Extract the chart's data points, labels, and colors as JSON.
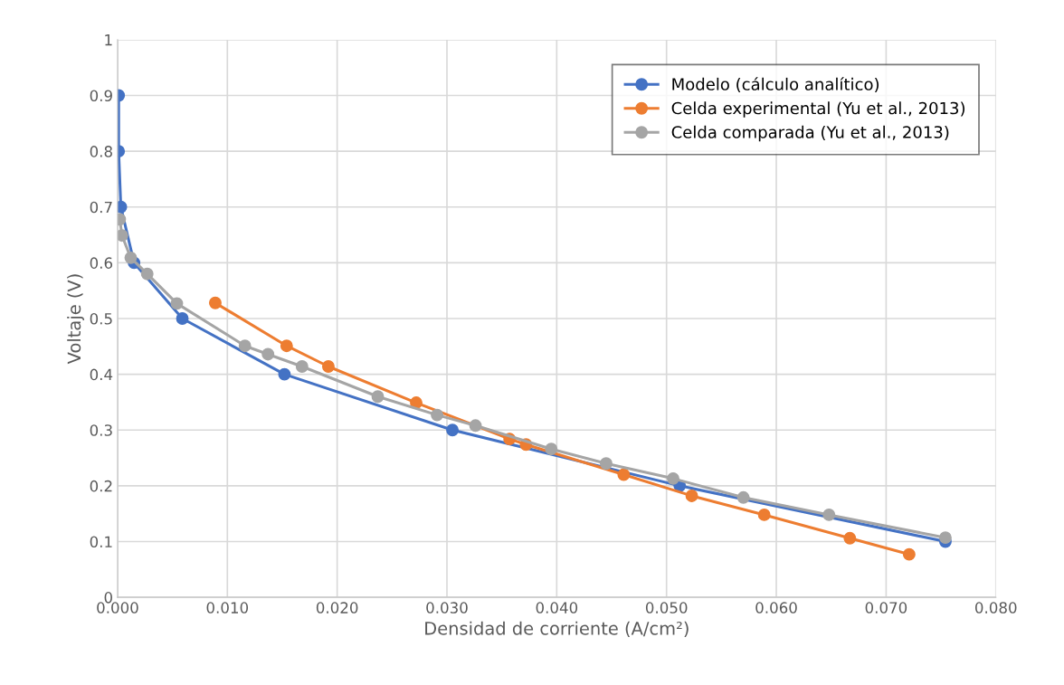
{
  "chart_data": {
    "type": "line",
    "xlabel": "Densidad de corriente (A/cm²)",
    "ylabel": "Voltaje (V)",
    "xlim": [
      0,
      0.08
    ],
    "ylim": [
      0,
      1
    ],
    "xticks": [
      {
        "value": 0,
        "label": "0.000"
      },
      {
        "value": 0.01,
        "label": "0.010"
      },
      {
        "value": 0.02,
        "label": "0.020"
      },
      {
        "value": 0.03,
        "label": "0.030"
      },
      {
        "value": 0.04,
        "label": "0.040"
      },
      {
        "value": 0.05,
        "label": "0.050"
      },
      {
        "value": 0.06,
        "label": "0.060"
      },
      {
        "value": 0.07,
        "label": "0.070"
      },
      {
        "value": 0.08,
        "label": "0.080"
      }
    ],
    "yticks": [
      0,
      0.1,
      0.2,
      0.3,
      0.4,
      0.5,
      0.6,
      0.7,
      0.8,
      0.9,
      1
    ],
    "grid": true,
    "legend": "top right",
    "marker": "circle",
    "line_style": "solid",
    "series": [
      {
        "name": "Modelo (cálculo analítico)",
        "color": "#4472c4",
        "x": [
          0.0001,
          0.0001,
          0.0003,
          0.0015,
          0.0059,
          0.0152,
          0.0305,
          0.0512,
          0.0754
        ],
        "values": [
          0.9,
          0.8,
          0.7,
          0.6,
          0.5,
          0.4,
          0.3,
          0.2,
          0.1
        ]
      },
      {
        "name": "Celda experimental (Yu et al., 2013)",
        "color": "#ed7d31",
        "x": [
          0.0089,
          0.0154,
          0.0192,
          0.0272,
          0.0357,
          0.0372,
          0.0461,
          0.0523,
          0.0589,
          0.0667,
          0.0721
        ],
        "values": [
          0.528,
          0.451,
          0.414,
          0.349,
          0.284,
          0.274,
          0.22,
          0.182,
          0.148,
          0.106,
          0.077
        ]
      },
      {
        "name": "Celda comparada (Yu et al., 2013)",
        "color": "#a5a5a5",
        "x": [
          0.0002,
          0.0004,
          0.0012,
          0.0027,
          0.0054,
          0.0116,
          0.0137,
          0.0168,
          0.0237,
          0.0291,
          0.0326,
          0.0395,
          0.0445,
          0.0506,
          0.057,
          0.0648,
          0.0754
        ],
        "values": [
          0.678,
          0.649,
          0.609,
          0.58,
          0.527,
          0.451,
          0.436,
          0.414,
          0.36,
          0.327,
          0.308,
          0.266,
          0.24,
          0.213,
          0.179,
          0.148,
          0.107
        ]
      }
    ]
  }
}
